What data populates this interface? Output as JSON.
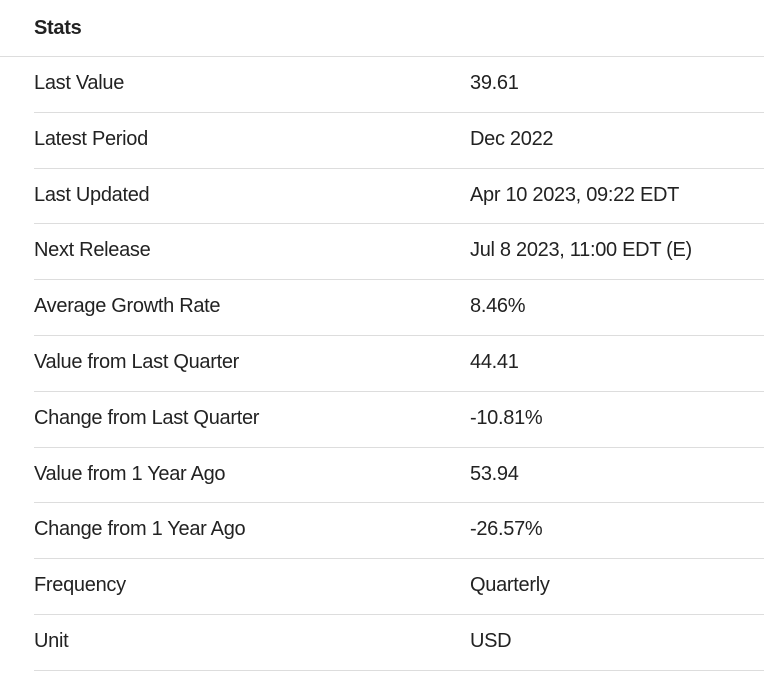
{
  "header": {
    "title": "Stats"
  },
  "table": {
    "rows": [
      [
        "Last Value",
        "39.61"
      ],
      [
        "Latest Period",
        "Dec 2022"
      ],
      [
        "Last Updated",
        "Apr 10 2023, 09:22 EDT"
      ],
      [
        "Next Release",
        "Jul 8 2023, 11:00 EDT (E)"
      ],
      [
        "Average Growth Rate",
        "8.46%"
      ],
      [
        "Value from Last Quarter",
        "44.41"
      ],
      [
        "Change from Last Quarter",
        "-10.81%"
      ],
      [
        "Value from 1 Year Ago",
        "53.94"
      ],
      [
        "Change from 1 Year Ago",
        "-26.57%"
      ],
      [
        "Frequency",
        "Quarterly"
      ],
      [
        "Unit",
        "USD"
      ]
    ]
  }
}
